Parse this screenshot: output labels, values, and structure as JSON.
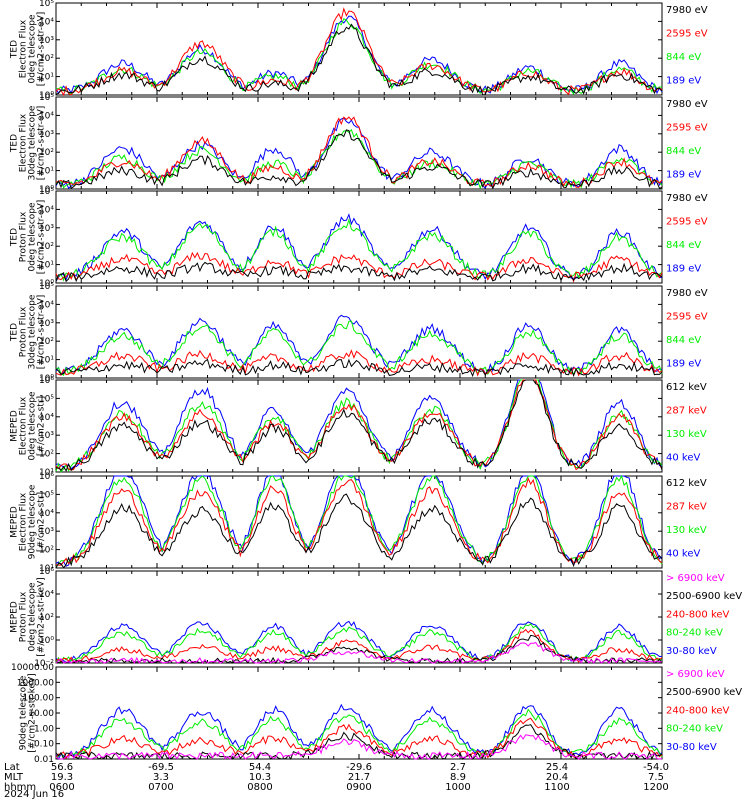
{
  "colors": {
    "black": "#000000",
    "red": "#ff0000",
    "green": "#00ee00",
    "blue": "#0000ff",
    "magenta": "#ff00ff"
  },
  "chart_data": [
    {
      "type": "line",
      "ylabel": [
        "TED",
        "Electron Flux",
        "0deg telescope",
        "[#/cm2-s-str-eV]"
      ],
      "ylim": [
        1,
        100000
      ],
      "yscale": "log",
      "yticks": [
        "10⁰",
        "10¹",
        "10²",
        "10³",
        "10⁴",
        "10⁵"
      ],
      "legend": [
        {
          "label": "7980 eV",
          "color": "#000000"
        },
        {
          "label": "2595 eV",
          "color": "#ff0000"
        },
        {
          "label": "844 eV",
          "color": "#00ee00"
        },
        {
          "label": "189 eV",
          "color": "#0000ff"
        }
      ],
      "pattern": "electron_ted",
      "series": [
        {
          "color": "#0000ff",
          "values": [
            1.5,
            2.3,
            1.0,
            4.0,
            1.7,
            1.3
          ]
        },
        {
          "color": "#00ee00",
          "values": [
            1.2,
            2.1,
            0.8,
            3.8,
            1.5,
            1.1
          ]
        },
        {
          "color": "#ff0000",
          "values": [
            1.1,
            2.6,
            0.6,
            4.3,
            1.4,
            1.0
          ]
        },
        {
          "color": "#000000",
          "values": [
            0.9,
            1.8,
            0.4,
            3.5,
            1.1,
            0.8
          ]
        }
      ]
    },
    {
      "type": "line",
      "ylabel": [
        "TED",
        "Electron Flux",
        "30deg telescope",
        "[#/cm2-s-str-eV]"
      ],
      "ylim": [
        1,
        100000
      ],
      "yscale": "log",
      "yticks": [
        "10⁰",
        "10¹",
        "10²",
        "10³",
        "10⁴",
        "10⁵"
      ],
      "legend": [
        {
          "label": "7980 eV",
          "color": "#000000"
        },
        {
          "label": "2595 eV",
          "color": "#ff0000"
        },
        {
          "label": "844 eV",
          "color": "#00ee00"
        },
        {
          "label": "189 eV",
          "color": "#0000ff"
        }
      ],
      "pattern": "electron_ted",
      "series": [
        {
          "color": "#0000ff",
          "values": [
            2.0,
            2.2,
            2.0,
            3.5,
            1.8,
            1.5
          ]
        },
        {
          "color": "#00ee00",
          "values": [
            1.5,
            1.9,
            1.2,
            3.0,
            1.2,
            1.2
          ]
        },
        {
          "color": "#ff0000",
          "values": [
            1.3,
            2.4,
            1.0,
            3.7,
            1.3,
            1.1
          ]
        },
        {
          "color": "#000000",
          "values": [
            0.8,
            1.4,
            0.5,
            2.8,
            1.0,
            0.7
          ]
        }
      ]
    },
    {
      "type": "line",
      "ylabel": [
        "TED",
        "Proton Flux",
        "0deg telescope",
        "[#/cm2-s-str-eV]"
      ],
      "ylim": [
        1,
        100000
      ],
      "yscale": "log",
      "yticks": [
        "10⁰",
        "10¹",
        "10²",
        "10³",
        "10⁴",
        "10⁵"
      ],
      "legend": [
        {
          "label": "7980 eV",
          "color": "#000000"
        },
        {
          "label": "2595 eV",
          "color": "#ff0000"
        },
        {
          "label": "844 eV",
          "color": "#00ee00"
        },
        {
          "label": "189 eV",
          "color": "#0000ff"
        }
      ],
      "pattern": "proton_ted",
      "series": [
        {
          "color": "#0000ff",
          "values": [
            2.5,
            3.0,
            2.8,
            3.2,
            2.6,
            2.7
          ]
        },
        {
          "color": "#00ee00",
          "values": [
            2.2,
            2.8,
            2.5,
            2.9,
            2.3,
            2.4
          ]
        },
        {
          "color": "#ff0000",
          "values": [
            1.0,
            1.2,
            0.9,
            1.1,
            0.8,
            1.0
          ]
        },
        {
          "color": "#000000",
          "values": [
            0.5,
            0.6,
            0.4,
            0.5,
            0.4,
            0.5
          ]
        }
      ]
    },
    {
      "type": "line",
      "ylabel": [
        "TED",
        "Proton Flux",
        "30deg telescope",
        "[#/cm2-s-str-eV]"
      ],
      "ylim": [
        1,
        100000
      ],
      "yscale": "log",
      "yticks": [
        "10⁰",
        "10¹",
        "10²",
        "10³",
        "10⁴",
        "10⁵"
      ],
      "legend": [
        {
          "label": "7980 eV",
          "color": "#000000"
        },
        {
          "label": "2595 eV",
          "color": "#ff0000"
        },
        {
          "label": "844 eV",
          "color": "#00ee00"
        },
        {
          "label": "189 eV",
          "color": "#0000ff"
        }
      ],
      "pattern": "proton_ted",
      "series": [
        {
          "color": "#0000ff",
          "values": [
            2.3,
            2.8,
            2.5,
            3.0,
            2.4,
            2.6
          ]
        },
        {
          "color": "#00ee00",
          "values": [
            2.0,
            2.5,
            2.2,
            2.6,
            2.1,
            2.2
          ]
        },
        {
          "color": "#ff0000",
          "values": [
            0.9,
            1.0,
            0.8,
            1.0,
            0.7,
            0.9
          ]
        },
        {
          "color": "#000000",
          "values": [
            0.4,
            0.5,
            0.4,
            0.5,
            0.3,
            0.4
          ]
        }
      ]
    },
    {
      "type": "line",
      "ylabel": [
        "MEPED",
        "Electron Flux",
        "0deg telescope",
        "[#/cm2-s-str]"
      ],
      "ylim": [
        10,
        1000000
      ],
      "yscale": "log",
      "yticks": [
        "10¹",
        "10²",
        "10³",
        "10⁴",
        "10⁵",
        "10⁶"
      ],
      "legend": [
        {
          "label": "612 keV",
          "color": "#000000"
        },
        {
          "label": "287 keV",
          "color": "#ff0000"
        },
        {
          "label": "130 keV",
          "color": "#00ee00"
        },
        {
          "label": "40 keV",
          "color": "#0000ff"
        }
      ],
      "pattern": "meped_e",
      "series": [
        {
          "color": "#0000ff",
          "values": [
            3.6,
            4.3,
            3.2,
            4.2,
            3.8,
            5.8
          ]
        },
        {
          "color": "#00ee00",
          "values": [
            3.0,
            3.5,
            2.8,
            3.6,
            3.2,
            5.5
          ]
        },
        {
          "color": "#ff0000",
          "values": [
            2.8,
            3.0,
            2.5,
            3.4,
            3.0,
            5.3
          ]
        },
        {
          "color": "#000000",
          "values": [
            2.3,
            2.5,
            2.2,
            3.0,
            2.6,
            5.0
          ]
        }
      ]
    },
    {
      "type": "line",
      "ylabel": [
        "MEPED",
        "Electron Flux",
        "90deg telescope",
        "[#/cm2-s-str]"
      ],
      "ylim": [
        10,
        1000000
      ],
      "yscale": "log",
      "yticks": [
        "10¹",
        "10²",
        "10³",
        "10⁴",
        "10⁵",
        "10⁶"
      ],
      "legend": [
        {
          "label": "612 keV",
          "color": "#000000"
        },
        {
          "label": "287 keV",
          "color": "#ff0000"
        },
        {
          "label": "130 keV",
          "color": "#00ee00"
        },
        {
          "label": "40 keV",
          "color": "#0000ff"
        }
      ],
      "pattern": "meped_e90",
      "series": [
        {
          "color": "#0000ff",
          "values": [
            5.2,
            5.0,
            5.1,
            5.3,
            5.0,
            5.2
          ]
        },
        {
          "color": "#00ee00",
          "values": [
            4.7,
            4.6,
            4.8,
            5.0,
            4.7,
            4.8
          ]
        },
        {
          "color": "#ff0000",
          "values": [
            4.0,
            3.9,
            4.1,
            4.5,
            4.0,
            4.5
          ]
        },
        {
          "color": "#000000",
          "values": [
            3.1,
            2.9,
            3.2,
            3.6,
            3.0,
            3.4
          ]
        }
      ]
    },
    {
      "type": "line",
      "ylabel": [
        "MEPED",
        "Proton Flux",
        "0deg telescope",
        "[#/cm2-s-str-keV]"
      ],
      "ylim": [
        0.01,
        1000000
      ],
      "yscale": "log",
      "yticks": [
        "10⁻²",
        "10⁰",
        "10²",
        "10⁴",
        "10⁶"
      ],
      "legend": [
        {
          "label": "> 6900 keV",
          "color": "#ff00ff"
        },
        {
          "label": "2500-6900 keV",
          "color": "#000000"
        },
        {
          "label": "240-800 keV",
          "color": "#ff0000"
        },
        {
          "label": "80-240 keV",
          "color": "#00ee00"
        },
        {
          "label": "30-80 keV",
          "color": "#0000ff"
        }
      ],
      "pattern": "meped_p",
      "series": [
        {
          "color": "#0000ff",
          "values": [
            3.0,
            3.2,
            3.0,
            3.3,
            3.1,
            3.5
          ]
        },
        {
          "color": "#00ee00",
          "values": [
            2.4,
            2.6,
            2.5,
            2.7,
            2.5,
            3.0
          ]
        },
        {
          "color": "#ff0000",
          "values": [
            1.0,
            1.2,
            1.1,
            1.6,
            1.2,
            2.5
          ]
        },
        {
          "color": "#000000",
          "values": [
            0.0,
            0.0,
            0.0,
            1.2,
            0.0,
            2.0
          ]
        },
        {
          "color": "#ff00ff",
          "values": [
            0.0,
            0.0,
            0.0,
            0.8,
            0.0,
            1.5
          ]
        }
      ]
    },
    {
      "type": "line",
      "ylabel": [
        "90deg telescope",
        "[#/cm2-s-str-keV]"
      ],
      "ylim": [
        0.01,
        10000
      ],
      "yscale": "log",
      "yticks": [
        "0.01",
        "0.10",
        "1.00",
        "10.00",
        "100.00",
        "1000.00",
        "10000.00"
      ],
      "legend": [
        {
          "label": "> 6900 keV",
          "color": "#ff00ff"
        },
        {
          "label": "2500-6900 keV",
          "color": "#000000"
        },
        {
          "label": "240-800 keV",
          "color": "#ff0000"
        },
        {
          "label": "80-240 keV",
          "color": "#00ee00"
        },
        {
          "label": "30-80 keV",
          "color": "#0000ff"
        }
      ],
      "pattern": "meped_p90",
      "series": [
        {
          "color": "#0000ff",
          "values": [
            3.0,
            2.9,
            3.0,
            3.2,
            3.0,
            3.3
          ]
        },
        {
          "color": "#00ee00",
          "values": [
            2.3,
            2.2,
            2.4,
            2.6,
            2.3,
            2.8
          ]
        },
        {
          "color": "#ff0000",
          "values": [
            1.1,
            1.0,
            1.2,
            1.8,
            1.1,
            2.3
          ]
        },
        {
          "color": "#000000",
          "values": [
            0.0,
            0.0,
            0.0,
            1.3,
            0.0,
            1.8
          ]
        },
        {
          "color": "#ff00ff",
          "values": [
            0.0,
            0.0,
            0.0,
            0.9,
            0.0,
            1.3
          ]
        }
      ]
    }
  ],
  "footer": {
    "rows": [
      {
        "label": "Lat",
        "values": [
          "56.6",
          "-69.5",
          "54.4",
          "-29.6",
          "2.7",
          "25.4",
          "-54.0"
        ]
      },
      {
        "label": "MLT",
        "values": [
          "19.3",
          "3.3",
          "10.3",
          "21.7",
          "8.9",
          "20.4",
          "7.5"
        ]
      },
      {
        "label": "hhmm",
        "values": [
          "0600",
          "0700",
          "0800",
          "0900",
          "1000",
          "1100",
          "1200"
        ]
      }
    ],
    "date": "2024 Jun 16"
  }
}
